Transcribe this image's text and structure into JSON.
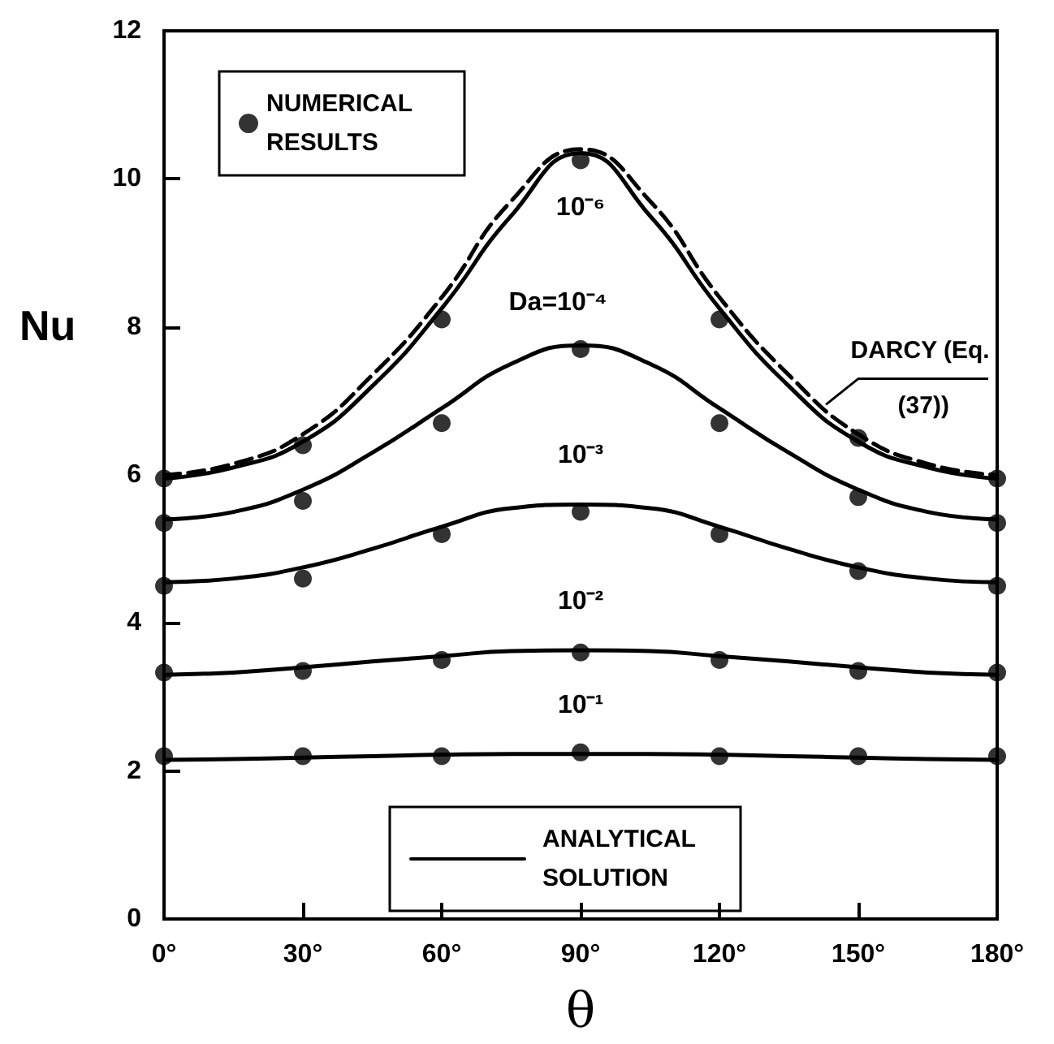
{
  "chart_data": {
    "type": "line",
    "xlabel": "θ",
    "ylabel": "Nu",
    "xlim": [
      0,
      180
    ],
    "xticks": [
      {
        "value": 0,
        "label": "0°"
      },
      {
        "value": 30,
        "label": "30°"
      },
      {
        "value": 60,
        "label": "60°"
      },
      {
        "value": 90,
        "label": "90°"
      },
      {
        "value": 120,
        "label": "120°"
      },
      {
        "value": 150,
        "label": "150°"
      },
      {
        "value": 180,
        "label": "180°"
      }
    ],
    "ylim": [
      0,
      12
    ],
    "yticks": [
      0,
      2,
      4,
      6,
      8,
      10,
      12
    ],
    "grid": false,
    "legend": "left",
    "marker": "none",
    "line_style": "solid",
    "x": [
      0,
      15,
      30,
      45,
      60,
      75,
      90,
      105,
      120,
      135,
      150,
      165,
      180
    ],
    "series": [
      {
        "type": "scatter",
        "name": "NUMERICAL RESULTS",
        "color": "#000000",
        "marker": "circle",
        "x": [
          0,
          30,
          60,
          90,
          120,
          150,
          180,
          0,
          30,
          60,
          90,
          120,
          150,
          180,
          0,
          30,
          60,
          90,
          120,
          150,
          180,
          0,
          30,
          60,
          90,
          120,
          150,
          180,
          0,
          30,
          60,
          90,
          120,
          150,
          180
        ],
        "values": [
          5.95,
          6.4,
          8.1,
          10.25,
          8.1,
          6.5,
          5.95,
          5.35,
          5.65,
          6.7,
          7.7,
          6.7,
          5.7,
          5.35,
          4.5,
          4.6,
          5.2,
          5.5,
          5.2,
          4.7,
          4.5,
          3.33,
          3.35,
          3.5,
          3.6,
          3.5,
          3.35,
          3.33,
          2.2,
          2.2,
          2.2,
          2.25,
          2.2,
          2.2,
          2.2
        ]
      },
      {
        "name": "ANALYTICAL SOLUTION",
        "color": "#000000",
        "values": [
          5.95,
          6.1,
          6.45,
          7.2,
          8.25,
          9.5,
          10.35,
          9.5,
          8.25,
          7.2,
          6.45,
          6.1,
          5.95
        ]
      },
      {
        "color": "#000000",
        "line_style": "dashed",
        "values": [
          6.0,
          6.15,
          6.55,
          7.35,
          8.4,
          9.7,
          10.4,
          9.7,
          8.4,
          7.35,
          6.55,
          6.15,
          6.0
        ]
      },
      {
        "color": "#000000",
        "values": [
          5.4,
          5.5,
          5.8,
          6.3,
          6.9,
          7.5,
          7.75,
          7.5,
          6.9,
          6.3,
          5.8,
          5.5,
          5.4
        ]
      },
      {
        "color": "#000000",
        "values": [
          4.55,
          4.6,
          4.75,
          5.0,
          5.3,
          5.55,
          5.6,
          5.55,
          5.3,
          5.0,
          4.75,
          4.6,
          4.55
        ]
      },
      {
        "color": "#000000",
        "values": [
          3.3,
          3.33,
          3.4,
          3.48,
          3.55,
          3.62,
          3.63,
          3.62,
          3.55,
          3.48,
          3.4,
          3.33,
          3.3
        ]
      },
      {
        "color": "#000000",
        "values": [
          2.15,
          2.16,
          2.18,
          2.2,
          2.22,
          2.23,
          2.23,
          2.23,
          2.22,
          2.2,
          2.18,
          2.16,
          2.15
        ]
      }
    ],
    "annotations": [
      "10⁻⁶",
      "Da=10⁻⁴",
      "10⁻³",
      "10⁻²",
      "10⁻¹",
      {
        "text": "DARCY (Eq. (37))",
        "x": 143,
        "y": 6.95
      }
    ]
  }
}
